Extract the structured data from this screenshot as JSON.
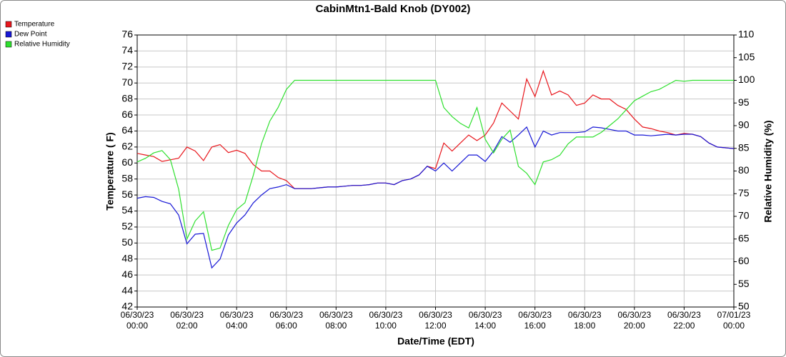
{
  "chart_data": {
    "type": "line",
    "title": "CabinMtn1-Bald Knob (DY002)",
    "x_label": "Date/Time (EDT)",
    "y_label": "Temperature ( F)",
    "y2_label": "Relative Humidity (%)",
    "legend": "top-left",
    "grid": true,
    "x": [
      "06/30/23 00:00",
      "06/30/23 00:20",
      "06/30/23 00:40",
      "06/30/23 01:00",
      "06/30/23 01:20",
      "06/30/23 01:40",
      "06/30/23 02:00",
      "06/30/23 02:20",
      "06/30/23 02:40",
      "06/30/23 03:00",
      "06/30/23 03:20",
      "06/30/23 03:40",
      "06/30/23 04:00",
      "06/30/23 04:20",
      "06/30/23 04:40",
      "06/30/23 05:00",
      "06/30/23 05:20",
      "06/30/23 05:40",
      "06/30/23 06:00",
      "06/30/23 06:20",
      "06/30/23 06:40",
      "06/30/23 07:00",
      "06/30/23 07:20",
      "06/30/23 07:40",
      "06/30/23 08:00",
      "06/30/23 08:20",
      "06/30/23 08:40",
      "06/30/23 09:00",
      "06/30/23 09:20",
      "06/30/23 09:40",
      "06/30/23 10:00",
      "06/30/23 10:20",
      "06/30/23 10:40",
      "06/30/23 11:00",
      "06/30/23 11:20",
      "06/30/23 11:40",
      "06/30/23 12:00",
      "06/30/23 12:20",
      "06/30/23 12:40",
      "06/30/23 13:00",
      "06/30/23 13:20",
      "06/30/23 13:40",
      "06/30/23 14:00",
      "06/30/23 14:20",
      "06/30/23 14:40",
      "06/30/23 15:00",
      "06/30/23 15:20",
      "06/30/23 15:40",
      "06/30/23 16:00",
      "06/30/23 16:20",
      "06/30/23 16:40",
      "06/30/23 17:00",
      "06/30/23 17:20",
      "06/30/23 17:40",
      "06/30/23 18:00",
      "06/30/23 18:20",
      "06/30/23 18:40",
      "06/30/23 19:00",
      "06/30/23 19:20",
      "06/30/23 19:40",
      "06/30/23 20:00",
      "06/30/23 20:20",
      "06/30/23 20:40",
      "06/30/23 21:00",
      "06/30/23 21:20",
      "06/30/23 21:40",
      "06/30/23 22:00",
      "06/30/23 22:20",
      "06/30/23 22:40",
      "06/30/23 23:00",
      "06/30/23 23:20",
      "06/30/23 23:40",
      "07/01/23 00:00"
    ],
    "xlim": [
      "06/30/23 00:00",
      "07/01/23 00:00"
    ],
    "xticks": [
      "06/30/23 00:00",
      "06/30/23 02:00",
      "06/30/23 04:00",
      "06/30/23 06:00",
      "06/30/23 08:00",
      "06/30/23 10:00",
      "06/30/23 12:00",
      "06/30/23 14:00",
      "06/30/23 16:00",
      "06/30/23 18:00",
      "06/30/23 20:00",
      "06/30/23 22:00",
      "07/01/23 00:00"
    ],
    "ylim": [
      42,
      76
    ],
    "yticks": [
      42,
      44,
      46,
      48,
      50,
      52,
      54,
      56,
      58,
      60,
      62,
      64,
      66,
      68,
      70,
      72,
      74,
      76
    ],
    "y2lim": [
      50,
      110
    ],
    "y2ticks": [
      50,
      55,
      60,
      65,
      70,
      75,
      80,
      85,
      90,
      95,
      100,
      105,
      110
    ],
    "series": [
      {
        "name": "Temperature",
        "color": "#e8161c",
        "values": [
          61.2,
          61.0,
          60.8,
          60.2,
          60.4,
          60.6,
          62.0,
          61.5,
          60.3,
          62.0,
          62.3,
          61.3,
          61.6,
          61.2,
          59.8,
          59.0,
          59.0,
          58.2,
          57.8,
          56.8,
          56.8,
          56.8,
          56.9,
          57.0,
          57.0,
          57.1,
          57.2,
          57.2,
          57.3,
          57.5,
          57.5,
          57.3,
          57.8,
          58.0,
          58.5,
          59.6,
          59.3,
          62.5,
          61.5,
          62.5,
          63.5,
          62.8,
          63.5,
          65.0,
          67.5,
          66.5,
          65.5,
          70.5,
          68.3,
          71.5,
          68.5,
          69.0,
          68.5,
          67.2,
          67.5,
          68.5,
          68.0,
          68.0,
          67.2,
          66.7,
          65.5,
          64.5,
          64.3,
          64.0,
          63.8,
          63.5,
          63.7,
          63.6,
          63.3,
          62.5,
          62.0,
          61.9,
          61.8
        ]
      },
      {
        "name": "Dew Point",
        "color": "#1717d6",
        "values": [
          55.6,
          55.8,
          55.7,
          55.2,
          54.9,
          53.5,
          49.9,
          51.1,
          51.2,
          46.9,
          48.0,
          51.0,
          52.5,
          53.5,
          55.0,
          56.0,
          56.8,
          57.0,
          57.3,
          56.8,
          56.8,
          56.8,
          56.9,
          57.0,
          57.0,
          57.1,
          57.2,
          57.2,
          57.3,
          57.5,
          57.5,
          57.3,
          57.8,
          58.0,
          58.5,
          59.6,
          59.0,
          60.0,
          59.0,
          60.0,
          61.0,
          61.0,
          60.2,
          61.5,
          63.3,
          62.6,
          63.5,
          64.5,
          62.0,
          64.0,
          63.5,
          63.8,
          63.8,
          63.8,
          63.9,
          64.5,
          64.4,
          64.2,
          64.0,
          64.0,
          63.5,
          63.5,
          63.4,
          63.5,
          63.6,
          63.5,
          63.6,
          63.6,
          63.3,
          62.5,
          62.0,
          61.9,
          61.8
        ]
      },
      {
        "name": "Relative Humidity",
        "color": "#2ee02e",
        "axis": "y2",
        "values": [
          82,
          82.8,
          84.0,
          84.5,
          82.5,
          76,
          65,
          69,
          71,
          62.5,
          63,
          68,
          71.5,
          73,
          79,
          86,
          91,
          94,
          98,
          100,
          100,
          100,
          100,
          100,
          100,
          100,
          100,
          100,
          100,
          100,
          100,
          100,
          100,
          100,
          100,
          100,
          100,
          94,
          92,
          90.5,
          89.5,
          94,
          87,
          84,
          87,
          89,
          81,
          79.5,
          77,
          82,
          82.5,
          83.5,
          86,
          87.5,
          87.5,
          87.5,
          88.5,
          90,
          91.5,
          93.5,
          95.5,
          96.5,
          97.5,
          98,
          99,
          100,
          99.8,
          100,
          100,
          100,
          100,
          100,
          100
        ]
      }
    ]
  }
}
